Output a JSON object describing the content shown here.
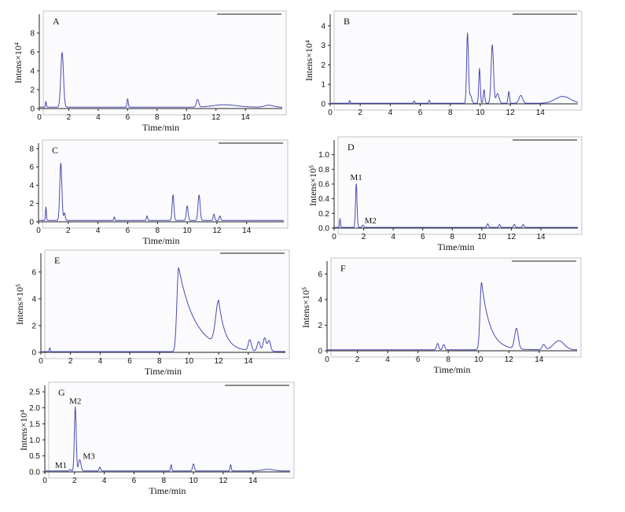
{
  "figure": {
    "overlay_letter": "a"
  },
  "colors": {
    "trace": "#4a4ab6",
    "frame": "#c4c4c4",
    "plot_background": "#fbfbfd"
  },
  "chart_data": [
    {
      "type": "line",
      "panel": "A",
      "title": "",
      "xlabel": "Time/min",
      "ylabel": "Intens×10⁴",
      "xlim": [
        0,
        16.5
      ],
      "ylim": [
        0,
        10
      ],
      "xticks": [
        0,
        2,
        4,
        6,
        8,
        10,
        12,
        14
      ],
      "yticks": [
        0,
        2,
        4,
        6,
        8
      ],
      "grid": false,
      "baseline": 0.15,
      "peaks": [
        {
          "x": 1.55,
          "y": 5.8,
          "w": 0.09
        },
        {
          "x": 0.45,
          "y": 0.6,
          "w": 0.03
        },
        {
          "x": 6.0,
          "y": 0.9,
          "w": 0.04
        },
        {
          "x": 10.75,
          "y": 0.8,
          "w": 0.08
        },
        {
          "x": 12.6,
          "y": 0.25,
          "w": 0.8
        },
        {
          "x": 15.6,
          "y": 0.2,
          "w": 0.3
        }
      ],
      "peak_labels": []
    },
    {
      "type": "line",
      "panel": "B",
      "title": "",
      "xlabel": "",
      "ylabel": "Intens×10⁴",
      "xlim": [
        0,
        16.5
      ],
      "ylim": [
        0,
        4.6
      ],
      "xticks": [
        0,
        2,
        4,
        6,
        8,
        10,
        12,
        14
      ],
      "yticks": [
        0,
        1,
        2,
        3,
        4
      ],
      "grid": false,
      "baseline": 0.03,
      "peaks": [
        {
          "x": 1.3,
          "y": 0.15,
          "w": 0.03
        },
        {
          "x": 5.6,
          "y": 0.12,
          "w": 0.04
        },
        {
          "x": 6.6,
          "y": 0.15,
          "w": 0.04
        },
        {
          "x": 9.15,
          "y": 3.6,
          "w": 0.06
        },
        {
          "x": 9.35,
          "y": 0.4,
          "w": 0.08
        },
        {
          "x": 9.95,
          "y": 1.8,
          "w": 0.05
        },
        {
          "x": 10.25,
          "y": 0.7,
          "w": 0.05
        },
        {
          "x": 10.8,
          "y": 3.0,
          "w": 0.08
        },
        {
          "x": 11.15,
          "y": 0.5,
          "w": 0.1
        },
        {
          "x": 11.9,
          "y": 0.6,
          "w": 0.05
        },
        {
          "x": 12.7,
          "y": 0.4,
          "w": 0.12
        },
        {
          "x": 15.5,
          "y": 0.35,
          "w": 0.5
        }
      ],
      "peak_labels": []
    },
    {
      "type": "line",
      "panel": "C",
      "title": "",
      "xlabel": "Time/min",
      "ylabel": "",
      "xlim": [
        0,
        16.5
      ],
      "ylim": [
        0,
        8.6
      ],
      "xticks": [
        0,
        2,
        4,
        6,
        8,
        10,
        12,
        14
      ],
      "yticks": [
        0,
        2,
        4,
        6,
        8
      ],
      "grid": false,
      "baseline": 0.15,
      "peaks": [
        {
          "x": 0.5,
          "y": 1.5,
          "w": 0.03
        },
        {
          "x": 1.5,
          "y": 6.3,
          "w": 0.07
        },
        {
          "x": 1.75,
          "y": 0.8,
          "w": 0.05
        },
        {
          "x": 5.1,
          "y": 0.4,
          "w": 0.03
        },
        {
          "x": 7.3,
          "y": 0.5,
          "w": 0.04
        },
        {
          "x": 9.05,
          "y": 2.8,
          "w": 0.06
        },
        {
          "x": 10.0,
          "y": 1.6,
          "w": 0.06
        },
        {
          "x": 10.8,
          "y": 2.8,
          "w": 0.07
        },
        {
          "x": 11.8,
          "y": 0.7,
          "w": 0.05
        },
        {
          "x": 12.2,
          "y": 0.5,
          "w": 0.05
        }
      ],
      "peak_labels": []
    },
    {
      "type": "line",
      "panel": "D",
      "title": "",
      "xlabel": "Time/min",
      "ylabel": "Intens×10⁵",
      "xlim": [
        0,
        16.5
      ],
      "ylim": [
        0,
        1.2
      ],
      "xticks": [
        0,
        2,
        4,
        6,
        8,
        10,
        12,
        14
      ],
      "yticks": [
        0.0,
        0.2,
        0.4,
        0.6,
        0.8,
        1.0
      ],
      "grid": false,
      "baseline": 0.01,
      "peaks": [
        {
          "x": 0.4,
          "y": 0.12,
          "w": 0.03
        },
        {
          "x": 1.5,
          "y": 0.6,
          "w": 0.05
        },
        {
          "x": 1.95,
          "y": 0.03,
          "w": 0.05
        },
        {
          "x": 10.4,
          "y": 0.05,
          "w": 0.05
        },
        {
          "x": 11.2,
          "y": 0.04,
          "w": 0.05
        },
        {
          "x": 12.2,
          "y": 0.04,
          "w": 0.05
        },
        {
          "x": 12.8,
          "y": 0.04,
          "w": 0.05
        }
      ],
      "peak_labels": [
        {
          "text": "M1",
          "x": 1.5,
          "y": 0.6
        },
        {
          "text": "M2",
          "x": 1.95,
          "y": 0.03
        }
      ]
    },
    {
      "type": "line",
      "panel": "E",
      "title": "",
      "xlabel": "Time/min",
      "ylabel": "Intens×10⁵",
      "xlim": [
        0,
        16.5
      ],
      "ylim": [
        0,
        7.4
      ],
      "xticks": [
        0,
        2,
        4,
        6,
        8,
        10,
        12,
        14
      ],
      "yticks": [
        0,
        2,
        4,
        6
      ],
      "grid": false,
      "baseline": 0.05,
      "peaks": [
        {
          "x": 0.6,
          "y": 0.3,
          "w": 0.03
        },
        {
          "x": 9.3,
          "y": 6.3,
          "w": 0.12,
          "tail": 1.1
        },
        {
          "x": 12.0,
          "y": 3.3,
          "w": 0.2,
          "tail": 0.4
        },
        {
          "x": 14.1,
          "y": 0.8,
          "w": 0.1
        },
        {
          "x": 14.7,
          "y": 0.7,
          "w": 0.1
        },
        {
          "x": 15.1,
          "y": 1.0,
          "w": 0.1
        },
        {
          "x": 15.4,
          "y": 0.8,
          "w": 0.1
        }
      ],
      "peak_labels": []
    },
    {
      "type": "line",
      "panel": "F",
      "title": "",
      "xlabel": "Time/min",
      "ylabel": "Intens×10⁵",
      "xlim": [
        0,
        16.5
      ],
      "ylim": [
        0,
        7
      ],
      "xticks": [
        0,
        2,
        4,
        6,
        8,
        10,
        12,
        14
      ],
      "yticks": [
        0,
        2,
        4,
        6
      ],
      "grid": false,
      "baseline": 0.08,
      "peaks": [
        {
          "x": 7.3,
          "y": 0.5,
          "w": 0.07
        },
        {
          "x": 7.7,
          "y": 0.4,
          "w": 0.07
        },
        {
          "x": 10.2,
          "y": 5.3,
          "w": 0.1,
          "tail": 0.55
        },
        {
          "x": 12.5,
          "y": 1.6,
          "w": 0.12
        },
        {
          "x": 14.3,
          "y": 0.4,
          "w": 0.1
        },
        {
          "x": 15.3,
          "y": 0.7,
          "w": 0.35
        }
      ],
      "peak_labels": []
    },
    {
      "type": "line",
      "panel": "G",
      "title": "",
      "xlabel": "Time/min",
      "ylabel": "Intens×10⁴",
      "xlim": [
        0,
        16.5
      ],
      "ylim": [
        0,
        2.7
      ],
      "xticks": [
        0,
        2,
        4,
        6,
        8,
        10,
        12,
        14
      ],
      "yticks": [
        0.0,
        0.5,
        1.0,
        1.5,
        2.0,
        2.5
      ],
      "grid": false,
      "baseline": 0.03,
      "peaks": [
        {
          "x": 1.7,
          "y": 0.05,
          "w": 0.05
        },
        {
          "x": 2.05,
          "y": 2.0,
          "w": 0.06
        },
        {
          "x": 2.35,
          "y": 0.35,
          "w": 0.08
        },
        {
          "x": 3.7,
          "y": 0.12,
          "w": 0.05
        },
        {
          "x": 8.5,
          "y": 0.2,
          "w": 0.04
        },
        {
          "x": 10.0,
          "y": 0.22,
          "w": 0.06
        },
        {
          "x": 12.5,
          "y": 0.2,
          "w": 0.04
        },
        {
          "x": 15.0,
          "y": 0.05,
          "w": 0.4
        }
      ],
      "peak_labels": [
        {
          "text": "M2",
          "x": 2.05,
          "y": 2.0
        },
        {
          "text": "M3",
          "x": 2.35,
          "y": 0.35
        },
        {
          "text": "M1",
          "x": 1.7,
          "y": 0.05
        }
      ]
    }
  ]
}
